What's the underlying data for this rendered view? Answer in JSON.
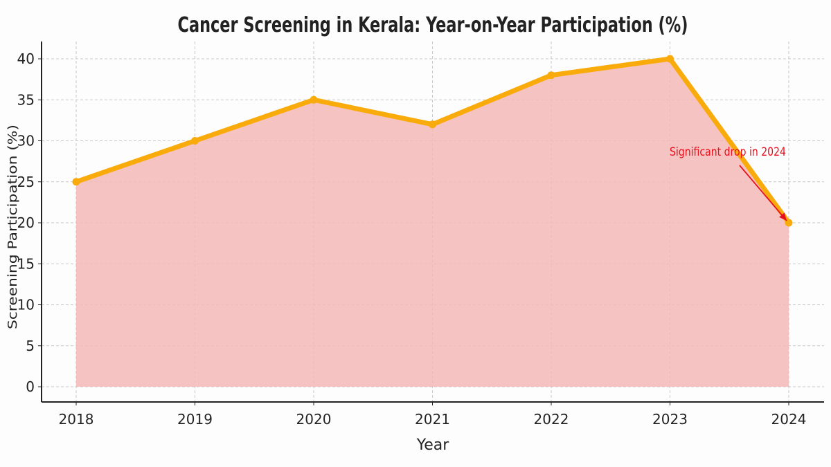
{
  "chart_data": {
    "type": "area",
    "title": "Cancer Screening in Kerala: Year-on-Year Participation (%)",
    "xlabel": "Year",
    "ylabel": "Screening Participation (%)",
    "categories": [
      "2018",
      "2019",
      "2020",
      "2021",
      "2022",
      "2023",
      "2024"
    ],
    "series": [
      {
        "name": "Screening Participation (%)",
        "values": [
          25,
          30,
          35,
          32,
          38,
          40,
          20
        ]
      }
    ],
    "ylim": [
      0,
      42
    ],
    "yticks": [
      0,
      5,
      10,
      15,
      20,
      25,
      30,
      35,
      40
    ],
    "grid": true,
    "colors": {
      "line": "#f9ab0c",
      "fill": "#f4b9b8",
      "annotation": "#e8101c",
      "grid": "#c8c8c8",
      "axis": "#222222"
    },
    "annotations": [
      {
        "text": "Significant drop in 2024",
        "target_category": "2024",
        "target_value": 20
      }
    ]
  }
}
